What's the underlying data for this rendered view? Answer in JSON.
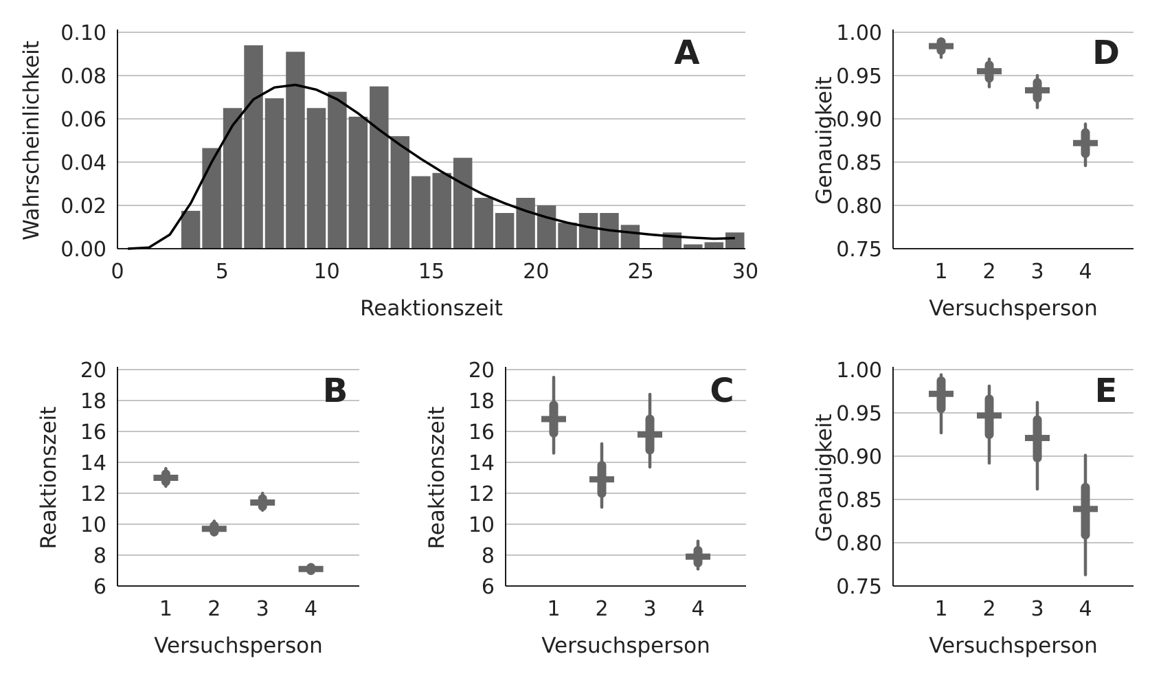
{
  "colors": {
    "bar": "#666666",
    "curve": "#000000",
    "grid": "#b0b0b0",
    "axis": "#000000",
    "text": "#222222"
  },
  "chart_data": [
    {
      "id": "A",
      "type": "bar",
      "panel_label": "A",
      "xlabel": "Reaktionszeit",
      "ylabel": "Wahrscheinlichkeit",
      "xlim": [
        0,
        30
      ],
      "ylim": [
        0,
        0.1
      ],
      "xticks": [
        "0",
        "5",
        "10",
        "15",
        "20",
        "25",
        "30"
      ],
      "yticks": [
        "0.00",
        "0.02",
        "0.04",
        "0.06",
        "0.08",
        "0.10"
      ],
      "grid": "horizontal",
      "bins": [
        {
          "x": 3.5,
          "value": 0.0175
        },
        {
          "x": 4.5,
          "value": 0.0465
        },
        {
          "x": 5.5,
          "value": 0.065
        },
        {
          "x": 6.5,
          "value": 0.094
        },
        {
          "x": 7.5,
          "value": 0.0695
        },
        {
          "x": 8.5,
          "value": 0.091
        },
        {
          "x": 9.5,
          "value": 0.065
        },
        {
          "x": 10.5,
          "value": 0.0725
        },
        {
          "x": 11.5,
          "value": 0.061
        },
        {
          "x": 12.5,
          "value": 0.075
        },
        {
          "x": 13.5,
          "value": 0.052
        },
        {
          "x": 14.5,
          "value": 0.0335
        },
        {
          "x": 15.5,
          "value": 0.035
        },
        {
          "x": 16.5,
          "value": 0.042
        },
        {
          "x": 17.5,
          "value": 0.0235
        },
        {
          "x": 18.5,
          "value": 0.0165
        },
        {
          "x": 19.5,
          "value": 0.0235
        },
        {
          "x": 20.5,
          "value": 0.02
        },
        {
          "x": 21.5,
          "value": 0.012
        },
        {
          "x": 22.5,
          "value": 0.0165
        },
        {
          "x": 23.5,
          "value": 0.0165
        },
        {
          "x": 24.5,
          "value": 0.011
        },
        {
          "x": 25.5,
          "value": 0.0003
        },
        {
          "x": 26.5,
          "value": 0.0075
        },
        {
          "x": 27.5,
          "value": 0.002
        },
        {
          "x": 28.5,
          "value": 0.003
        },
        {
          "x": 29.5,
          "value": 0.0075
        }
      ],
      "curve": {
        "x": [
          0.5,
          1.5,
          2.5,
          3.5,
          4.5,
          5.5,
          6.5,
          7.5,
          8.5,
          9.5,
          10.5,
          11.5,
          12.5,
          13.5,
          14.5,
          15.5,
          16.5,
          17.5,
          18.5,
          19.5,
          20.5,
          21.5,
          22.5,
          23.5,
          24.5,
          25.5,
          26.5,
          27.5,
          28.5,
          29.5
        ],
        "y": [
          0.0,
          0.0005,
          0.0065,
          0.021,
          0.04,
          0.057,
          0.069,
          0.0745,
          0.0757,
          0.0735,
          0.069,
          0.0625,
          0.055,
          0.048,
          0.0415,
          0.0355,
          0.03,
          0.025,
          0.021,
          0.0175,
          0.0145,
          0.012,
          0.01,
          0.0085,
          0.0075,
          0.0065,
          0.0057,
          0.0051,
          0.0046,
          0.0049
        ]
      }
    },
    {
      "id": "B",
      "type": "violin",
      "panel_label": "B",
      "xlabel": "Versuchsperson",
      "ylabel": "Reaktionszeit",
      "ylim": [
        6,
        20
      ],
      "yticks": [
        "6",
        "8",
        "10",
        "12",
        "14",
        "16",
        "18",
        "20"
      ],
      "categories": [
        "1",
        "2",
        "3",
        "4"
      ],
      "grid": "horizontal",
      "distributions": [
        {
          "mean": 13.0,
          "low": 12.45,
          "high": 13.6,
          "core_low": 12.75,
          "core_high": 13.25
        },
        {
          "mean": 9.7,
          "low": 9.3,
          "high": 10.2,
          "core_low": 9.5,
          "core_high": 9.9
        },
        {
          "mean": 11.4,
          "low": 10.9,
          "high": 12.0,
          "core_low": 11.15,
          "core_high": 11.65
        },
        {
          "mean": 7.1,
          "low": 6.9,
          "high": 7.3,
          "core_low": 7.0,
          "core_high": 7.2
        }
      ]
    },
    {
      "id": "C",
      "type": "violin",
      "panel_label": "C",
      "xlabel": "Versuchsperson",
      "ylabel": "Reaktionszeit",
      "ylim": [
        6,
        20
      ],
      "yticks": [
        "6",
        "8",
        "10",
        "12",
        "14",
        "16",
        "18",
        "20"
      ],
      "categories": [
        "1",
        "2",
        "3",
        "4"
      ],
      "grid": "horizontal",
      "distributions": [
        {
          "mean": 16.8,
          "low": 14.6,
          "high": 19.5,
          "core_low": 15.9,
          "core_high": 17.7
        },
        {
          "mean": 12.9,
          "low": 11.1,
          "high": 15.2,
          "core_low": 12.0,
          "core_high": 13.8
        },
        {
          "mean": 15.8,
          "low": 13.7,
          "high": 18.4,
          "core_low": 14.8,
          "core_high": 16.8
        },
        {
          "mean": 7.9,
          "low": 7.1,
          "high": 8.9,
          "core_low": 7.5,
          "core_high": 8.3
        }
      ]
    },
    {
      "id": "D",
      "type": "violin",
      "panel_label": "D",
      "xlabel": "Versuchsperson",
      "ylabel": "Genauigkeit",
      "ylim": [
        0.75,
        1.0
      ],
      "yticks": [
        "0.75",
        "0.80",
        "0.85",
        "0.90",
        "0.95",
        "1.00"
      ],
      "categories": [
        "1",
        "2",
        "3",
        "4"
      ],
      "grid": "horizontal",
      "distributions": [
        {
          "mean": 0.984,
          "low": 0.971,
          "high": 0.992,
          "core_low": 0.979,
          "core_high": 0.989
        },
        {
          "mean": 0.955,
          "low": 0.937,
          "high": 0.969,
          "core_low": 0.947,
          "core_high": 0.962
        },
        {
          "mean": 0.933,
          "low": 0.913,
          "high": 0.95,
          "core_low": 0.924,
          "core_high": 0.942
        },
        {
          "mean": 0.872,
          "low": 0.846,
          "high": 0.894,
          "core_low": 0.86,
          "core_high": 0.884
        }
      ]
    },
    {
      "id": "E",
      "type": "violin",
      "panel_label": "E",
      "xlabel": "Versuchsperson",
      "ylabel": "Genauigkeit",
      "ylim": [
        0.75,
        1.0
      ],
      "yticks": [
        "0.75",
        "0.80",
        "0.85",
        "0.90",
        "0.95",
        "1.00"
      ],
      "categories": [
        "1",
        "2",
        "3",
        "4"
      ],
      "grid": "horizontal",
      "distributions": [
        {
          "mean": 0.972,
          "low": 0.927,
          "high": 0.994,
          "core_low": 0.955,
          "core_high": 0.987
        },
        {
          "mean": 0.947,
          "low": 0.892,
          "high": 0.981,
          "core_low": 0.925,
          "core_high": 0.966
        },
        {
          "mean": 0.921,
          "low": 0.862,
          "high": 0.962,
          "core_low": 0.898,
          "core_high": 0.942
        },
        {
          "mean": 0.839,
          "low": 0.763,
          "high": 0.901,
          "core_low": 0.809,
          "core_high": 0.864
        }
      ]
    }
  ]
}
